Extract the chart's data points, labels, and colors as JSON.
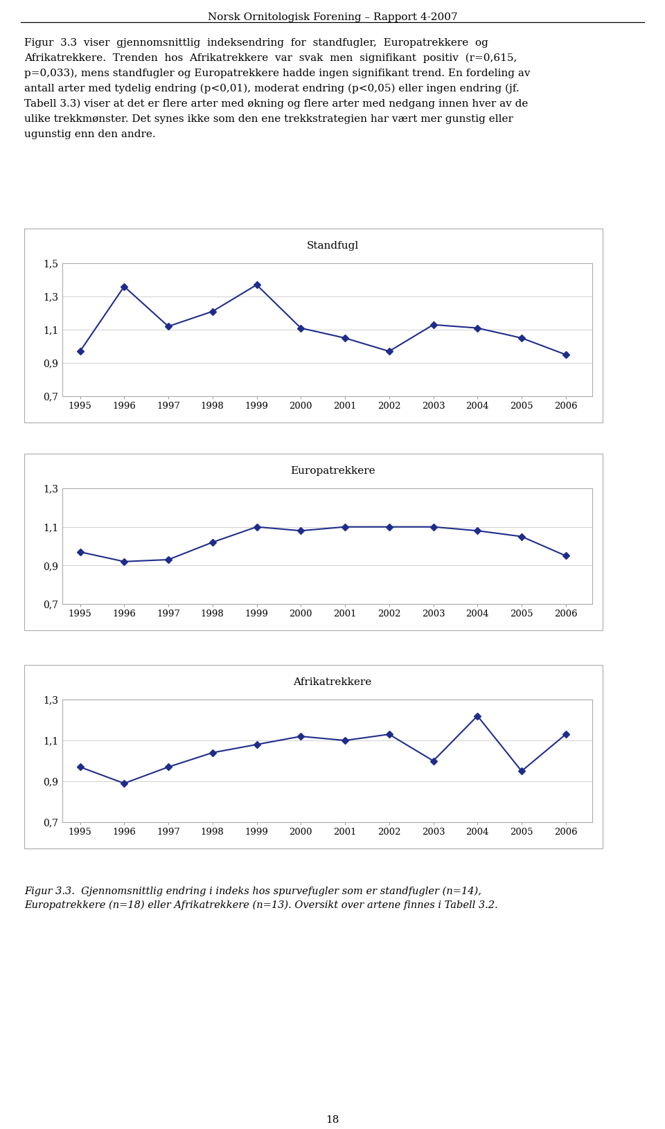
{
  "years": [
    1995,
    1996,
    1997,
    1998,
    1999,
    2000,
    2001,
    2002,
    2003,
    2004,
    2005,
    2006
  ],
  "standfugl": [
    0.97,
    1.36,
    1.12,
    1.21,
    1.37,
    1.11,
    1.05,
    0.97,
    1.13,
    1.11,
    1.05,
    0.95
  ],
  "europatrekkere": [
    0.97,
    0.92,
    0.93,
    1.02,
    1.1,
    1.08,
    1.1,
    1.1,
    1.1,
    1.08,
    1.05,
    0.95
  ],
  "afrikatrekkere": [
    0.97,
    0.89,
    0.97,
    1.04,
    1.08,
    1.12,
    1.1,
    1.13,
    1.0,
    1.22,
    0.95,
    1.13
  ],
  "line_color": "#1F2D8A",
  "marker": "D",
  "marker_size": 5,
  "ylim_standfugl": [
    0.7,
    1.5
  ],
  "ylim_euro": [
    0.7,
    1.3
  ],
  "ylim_afri": [
    0.7,
    1.3
  ],
  "yticks_standfugl": [
    0.7,
    0.9,
    1.1,
    1.3,
    1.5
  ],
  "yticks_euro": [
    0.7,
    0.9,
    1.1,
    1.3
  ],
  "yticks_afri": [
    0.7,
    0.9,
    1.1,
    1.3
  ],
  "ytick_labels_standfugl": [
    "0,7",
    "0,9",
    "1,1",
    "1,3",
    "1,5"
  ],
  "ytick_labels_euro": [
    "0,7",
    "0,9",
    "1,1",
    "1,3"
  ],
  "ytick_labels_afri": [
    "0,7",
    "0,9",
    "1,1",
    "1,3"
  ],
  "title_standfugl": "Standfugl",
  "title_euro": "Europatrekkere",
  "title_afri": "Afrikatrekkere",
  "header": "Norsk Ornitologisk Forening – Rapport 4-2007",
  "para1_line1": "Figur  3.3  viser  gjennomsnittlig  indeksendring  for  standfugler,  Europatrekkere  og",
  "para1_line2": "Afrikatrekkere.  Trenden  hos  Afrikatrekkere  var  svak  men  signifikant  positiv  (r=0,615,",
  "para1_line3": "p=0,033), mens standfugler og Europatrekkere hadde ingen signifikant trend. En fordeling av",
  "para1_line4": "antall arter med tydelig endring (p<0,01), moderat endring (p<0,05) eller ingen endring (jf.",
  "para1_line5": "Tabell 3.3) viser at det er flere arter med økning og flere arter med nedgang innen hver av de",
  "para1_line6": "ulike trekkmønster. Det synes ikke som den ene trekkstrategien har vært mer gunstig eller",
  "para1_line7": "ugunstig enn den andre.",
  "caption_line1": "Figur 3.3.  Gjennomsnittlig endring i indeks hos spurvefugler som er standfugler (n=14),",
  "caption_line2": "Europatrekkere (n=18) eller Afrikatrekkere (n=13). Oversikt over artene finnes i Tabell 3.2.",
  "page_number": "18",
  "bg_color": "#ffffff",
  "grid_color": "#d0d0d0",
  "border_color": "#aaaaaa"
}
